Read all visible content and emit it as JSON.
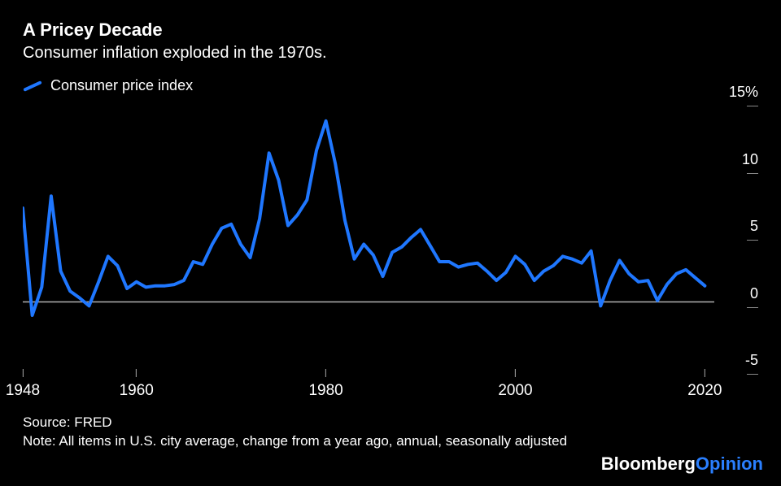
{
  "title": "A Pricey Decade",
  "subtitle": "Consumer inflation exploded in the 1970s.",
  "legend": {
    "label": "Consumer price index",
    "swatch_color": "#1f77ff"
  },
  "chart": {
    "type": "line",
    "line_color": "#1f77ff",
    "line_width": 4,
    "background_color": "#000000",
    "zero_axis_color": "#b0b0b0",
    "xlim": [
      1948,
      2021
    ],
    "ylim": [
      -5,
      15
    ],
    "y_ticks": [
      {
        "value": 15,
        "label": "15%"
      },
      {
        "value": 10,
        "label": "10"
      },
      {
        "value": 5,
        "label": "5"
      },
      {
        "value": 0,
        "label": "0"
      },
      {
        "value": -5,
        "label": "-5"
      }
    ],
    "x_ticks": [
      {
        "value": 1948,
        "label": "1948"
      },
      {
        "value": 1960,
        "label": "1960"
      },
      {
        "value": 1980,
        "label": "1980"
      },
      {
        "value": 2000,
        "label": "2000"
      },
      {
        "value": 2020,
        "label": "2020"
      }
    ],
    "series": [
      {
        "x": 1948,
        "y": 7.0
      },
      {
        "x": 1949,
        "y": -1.0
      },
      {
        "x": 1950,
        "y": 1.1
      },
      {
        "x": 1951,
        "y": 7.9
      },
      {
        "x": 1952,
        "y": 2.3
      },
      {
        "x": 1953,
        "y": 0.8
      },
      {
        "x": 1954,
        "y": 0.3
      },
      {
        "x": 1955,
        "y": -0.3
      },
      {
        "x": 1956,
        "y": 1.5
      },
      {
        "x": 1957,
        "y": 3.4
      },
      {
        "x": 1958,
        "y": 2.7
      },
      {
        "x": 1959,
        "y": 1.0
      },
      {
        "x": 1960,
        "y": 1.5
      },
      {
        "x": 1961,
        "y": 1.1
      },
      {
        "x": 1962,
        "y": 1.2
      },
      {
        "x": 1963,
        "y": 1.2
      },
      {
        "x": 1964,
        "y": 1.3
      },
      {
        "x": 1965,
        "y": 1.6
      },
      {
        "x": 1966,
        "y": 3.0
      },
      {
        "x": 1967,
        "y": 2.8
      },
      {
        "x": 1968,
        "y": 4.3
      },
      {
        "x": 1969,
        "y": 5.5
      },
      {
        "x": 1970,
        "y": 5.8
      },
      {
        "x": 1971,
        "y": 4.3
      },
      {
        "x": 1972,
        "y": 3.3
      },
      {
        "x": 1973,
        "y": 6.2
      },
      {
        "x": 1974,
        "y": 11.1
      },
      {
        "x": 1975,
        "y": 9.1
      },
      {
        "x": 1976,
        "y": 5.7
      },
      {
        "x": 1977,
        "y": 6.5
      },
      {
        "x": 1978,
        "y": 7.6
      },
      {
        "x": 1979,
        "y": 11.3
      },
      {
        "x": 1980,
        "y": 13.5
      },
      {
        "x": 1981,
        "y": 10.3
      },
      {
        "x": 1982,
        "y": 6.1
      },
      {
        "x": 1983,
        "y": 3.2
      },
      {
        "x": 1984,
        "y": 4.3
      },
      {
        "x": 1985,
        "y": 3.5
      },
      {
        "x": 1986,
        "y": 1.9
      },
      {
        "x": 1987,
        "y": 3.7
      },
      {
        "x": 1988,
        "y": 4.1
      },
      {
        "x": 1989,
        "y": 4.8
      },
      {
        "x": 1990,
        "y": 5.4
      },
      {
        "x": 1991,
        "y": 4.2
      },
      {
        "x": 1992,
        "y": 3.0
      },
      {
        "x": 1993,
        "y": 3.0
      },
      {
        "x": 1994,
        "y": 2.6
      },
      {
        "x": 1995,
        "y": 2.8
      },
      {
        "x": 1996,
        "y": 2.9
      },
      {
        "x": 1997,
        "y": 2.3
      },
      {
        "x": 1998,
        "y": 1.6
      },
      {
        "x": 1999,
        "y": 2.2
      },
      {
        "x": 2000,
        "y": 3.4
      },
      {
        "x": 2001,
        "y": 2.8
      },
      {
        "x": 2002,
        "y": 1.6
      },
      {
        "x": 2003,
        "y": 2.3
      },
      {
        "x": 2004,
        "y": 2.7
      },
      {
        "x": 2005,
        "y": 3.4
      },
      {
        "x": 2006,
        "y": 3.2
      },
      {
        "x": 2007,
        "y": 2.9
      },
      {
        "x": 2008,
        "y": 3.8
      },
      {
        "x": 2009,
        "y": -0.3
      },
      {
        "x": 2010,
        "y": 1.6
      },
      {
        "x": 2011,
        "y": 3.1
      },
      {
        "x": 2012,
        "y": 2.1
      },
      {
        "x": 2013,
        "y": 1.5
      },
      {
        "x": 2014,
        "y": 1.6
      },
      {
        "x": 2015,
        "y": 0.1
      },
      {
        "x": 2016,
        "y": 1.3
      },
      {
        "x": 2017,
        "y": 2.1
      },
      {
        "x": 2018,
        "y": 2.4
      },
      {
        "x": 2019,
        "y": 1.8
      },
      {
        "x": 2020,
        "y": 1.2
      }
    ]
  },
  "source": "Source: FRED",
  "note": "Note: All items in U.S. city average, change from a year ago, annual, seasonally adjusted",
  "brand": {
    "a": "Bloomberg",
    "b": "Opinion",
    "color_a": "#ffffff",
    "color_b": "#2a7fff"
  },
  "typography": {
    "title_fontsize": 22,
    "subtitle_fontsize": 20,
    "axis_fontsize": 18
  }
}
